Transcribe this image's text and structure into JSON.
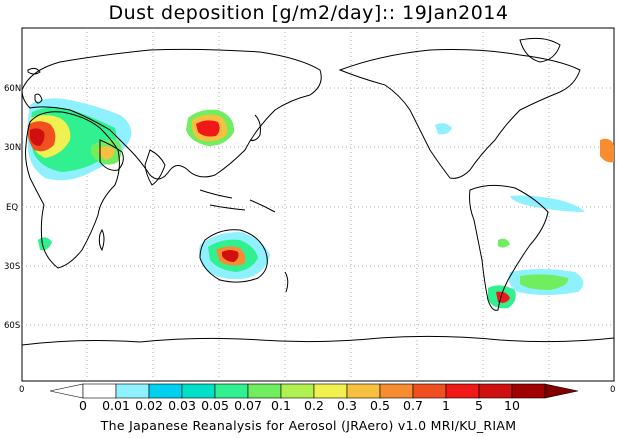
{
  "title": "Dust deposition [g/m2/day]:: 19Jan2014",
  "footer": "The Japanese Reanalysis for Aerosol (JRAero) v1.0 MRI/KU_RIAM",
  "lat_labels": [
    "60N",
    "30N",
    "EQ",
    "30S",
    "60S"
  ],
  "colorbar": {
    "left_end_label": "0",
    "right_end_label": "0",
    "labels": [
      "0",
      "0.01",
      "0.02",
      "0.03",
      "0.05",
      "0.07",
      "0.1",
      "0.2",
      "0.3",
      "0.5",
      "0.7",
      "1",
      "5",
      "10"
    ],
    "colors": [
      "#ffffff",
      "#ffffff",
      "#8ff0ff",
      "#00d0f0",
      "#00e0c8",
      "#30f090",
      "#70ee60",
      "#b0f050",
      "#f0f050",
      "#f8c040",
      "#f88c30",
      "#f05020",
      "#f01818",
      "#d01010",
      "#a00000",
      "#800000"
    ]
  },
  "colors": {
    "coast": "#000000",
    "grid": "#999999",
    "background": "#ffffff"
  }
}
